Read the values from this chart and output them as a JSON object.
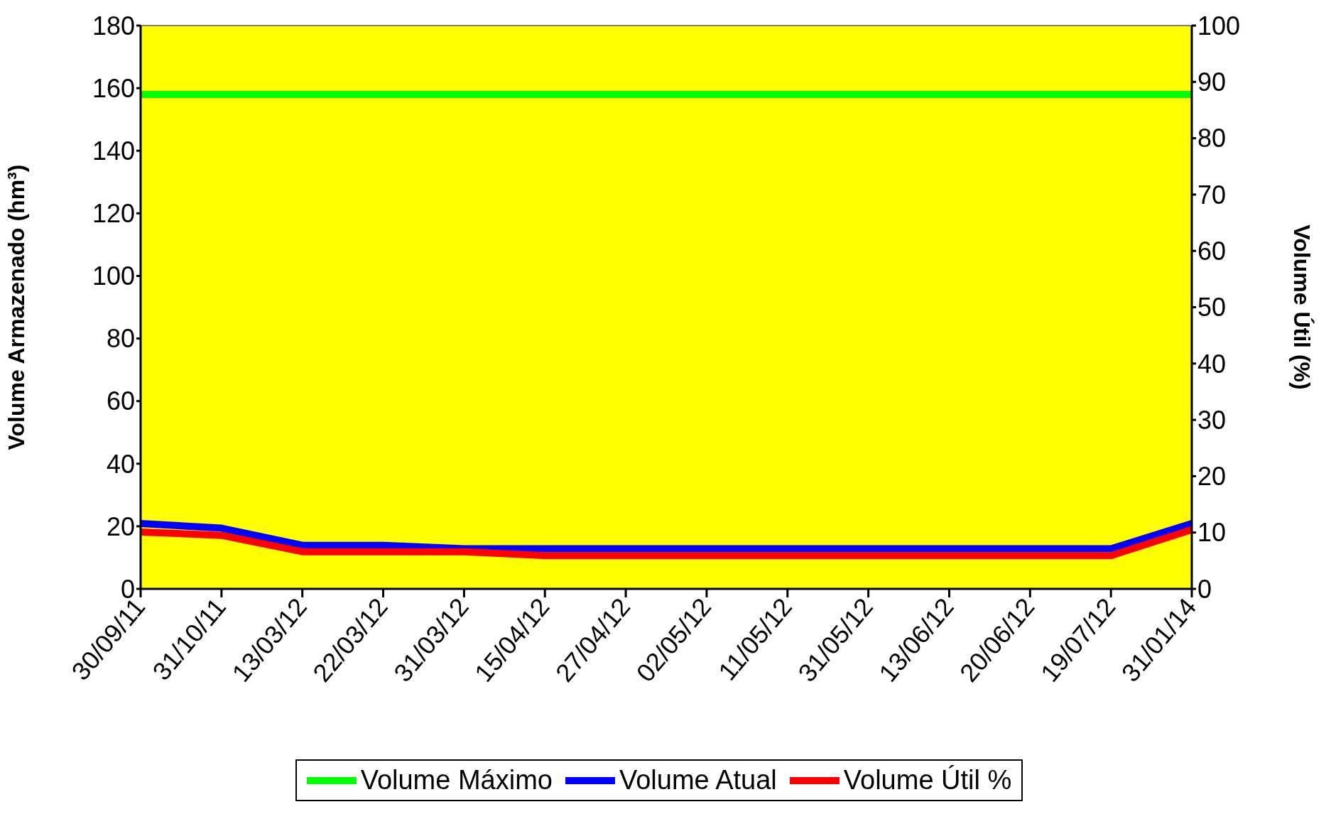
{
  "chart_data": {
    "type": "line",
    "ylabel": "Volume Armazenado (hm³)",
    "y2label": "Volume Útil (%)",
    "categories": [
      "30/09/11",
      "31/10/11",
      "13/03/12",
      "22/03/12",
      "31/03/12",
      "15/04/12",
      "27/04/12",
      "02/05/12",
      "11/05/12",
      "31/05/12",
      "13/06/12",
      "20/06/12",
      "19/07/12",
      "31/01/14"
    ],
    "series": [
      {
        "name": "Volume Máximo",
        "color": "#00ff00",
        "values": [
          158,
          158,
          158,
          158,
          158,
          158,
          158,
          158,
          158,
          158,
          158,
          158,
          158,
          158
        ]
      },
      {
        "name": "Volume Atual",
        "color": "#0000ff",
        "values": [
          20.9,
          19.4,
          13.9,
          13.9,
          12.8,
          12.8,
          12.8,
          12.8,
          12.8,
          12.8,
          12.8,
          12.8,
          12.8,
          20.9
        ]
      },
      {
        "name": "Volume Útil %",
        "color": "#ff0000",
        "axis": "y2",
        "values": [
          10.1,
          9.5,
          6.6,
          6.6,
          6.6,
          5.9,
          5.9,
          5.9,
          5.9,
          5.9,
          5.9,
          5.9,
          5.9,
          10.5
        ]
      }
    ],
    "ylim": [
      0,
      180
    ],
    "yticks": [
      0,
      20,
      40,
      60,
      80,
      100,
      120,
      140,
      160,
      180
    ],
    "y2lim": [
      0,
      100
    ],
    "y2ticks": [
      0,
      10,
      20,
      30,
      40,
      50,
      60,
      70,
      80,
      90,
      100
    ],
    "legend": "bottom",
    "marker": "none",
    "line_style": "solid"
  }
}
